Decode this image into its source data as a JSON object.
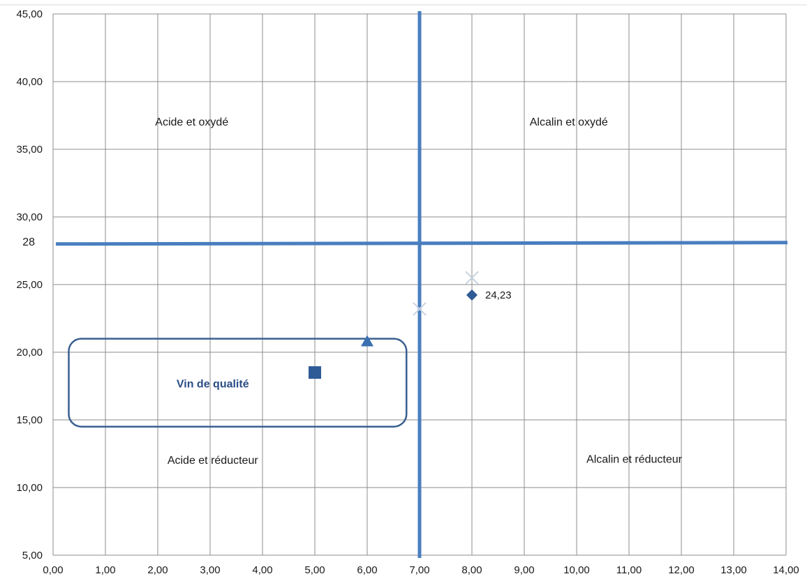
{
  "chart_data": {
    "type": "scatter",
    "title": "",
    "xlabel": "",
    "ylabel": "",
    "xlim": [
      0,
      14
    ],
    "ylim": [
      5,
      45
    ],
    "grid": true,
    "x_ticks": [
      "0,00",
      "1,00",
      "2,00",
      "3,00",
      "4,00",
      "5,00",
      "6,00",
      "7,00",
      "8,00",
      "9,00",
      "10,00",
      "11,00",
      "12,00",
      "13,00",
      "14,00"
    ],
    "y_ticks": [
      "5,00",
      "10,00",
      "15,00",
      "20,00",
      "25,00",
      "30,00",
      "35,00",
      "40,00",
      "45,00"
    ],
    "reference_lines": {
      "vertical_x": 7,
      "horizontal_y": 28,
      "horizontal_label": "28",
      "color": "#4a7ebf"
    },
    "series": [
      {
        "marker": "diamond",
        "color": "#2e5a96",
        "points": [
          {
            "x": 8,
            "y": 24.23,
            "label": "24,23"
          }
        ]
      },
      {
        "marker": "square",
        "color": "#2e5a96",
        "points": [
          {
            "x": 5,
            "y": 18.5
          }
        ]
      },
      {
        "marker": "triangle",
        "color": "#3a6fb0",
        "points": [
          {
            "x": 6,
            "y": 20.8
          }
        ]
      },
      {
        "marker": "x",
        "color": "#c8d2e0",
        "points": [
          {
            "x": 7,
            "y": 23.2
          }
        ]
      },
      {
        "marker": "x",
        "color": "#c8d2e0",
        "points": [
          {
            "x": 8,
            "y": 25.5
          }
        ]
      }
    ],
    "quality_box": {
      "x0": 0.3,
      "x1": 6.75,
      "y0": 14.5,
      "y1": 21,
      "label": "Vin de qualité"
    },
    "annotations": [
      {
        "text": "Acide et oxydé",
        "x": 2.65,
        "y": 37
      },
      {
        "text": "Alcalin et oxydé",
        "x": 9.85,
        "y": 37
      },
      {
        "text": "Acide et réducteur",
        "x": 3.05,
        "y": 12
      },
      {
        "text": "Alcalin et réducteur",
        "x": 11.1,
        "y": 12.1
      }
    ]
  }
}
